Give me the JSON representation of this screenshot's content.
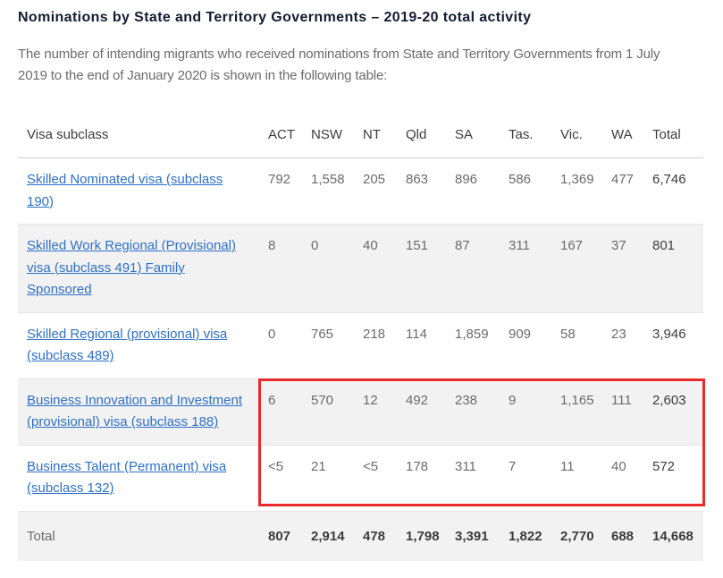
{
  "page": {
    "title": "Nominations by State and Territory Governments – 2019-20 total activity",
    "intro": "The number of intending migrants who received nominations from State and Territory Governments from 1 July 2019 to the end of January 2020 is shown in the following table:"
  },
  "table": {
    "columns": [
      "Visa subclass",
      "ACT",
      "NSW",
      "NT",
      "Qld",
      "SA",
      "Tas.",
      "Vic.",
      "WA",
      "Total"
    ],
    "rows": [
      {
        "label": "Skilled Nominated visa (subclass 190)",
        "is_link": true,
        "shaded": false,
        "values": [
          "792",
          "1,558",
          "205",
          "863",
          "896",
          "586",
          "1,369",
          "477"
        ],
        "total": "6,746"
      },
      {
        "label": "Skilled Work Regional (Provisional) visa (subclass 491) Family Sponsored",
        "is_link": true,
        "shaded": true,
        "values": [
          "8",
          "0",
          "40",
          "151",
          "87",
          "311",
          "167",
          "37"
        ],
        "total": "801"
      },
      {
        "label": "Skilled Regional (provisional) visa (subclass 489)",
        "is_link": true,
        "shaded": false,
        "values": [
          "0",
          "765",
          "218",
          "114",
          "1,859",
          "909",
          "58",
          "23"
        ],
        "total": "3,946"
      },
      {
        "label": "Business Innovation and Investment (provisional) visa (subclass 188)",
        "is_link": true,
        "shaded": true,
        "values": [
          "6",
          "570",
          "12",
          "492",
          "238",
          "9",
          "1,165",
          "111"
        ],
        "total": "2,603"
      },
      {
        "label": "Business Talent (Permanent) visa (subclass 132)",
        "is_link": true,
        "shaded": false,
        "values": [
          "<5",
          "21",
          "<5",
          "178",
          "311",
          "7",
          "11",
          "40"
        ],
        "total": "572"
      }
    ],
    "total_row": {
      "label": "Total",
      "values": [
        "807",
        "2,914",
        "478",
        "1,798",
        "3,391",
        "1,822",
        "2,770",
        "688"
      ],
      "total": "14,668"
    }
  },
  "annotation": {
    "highlight_color": "#e92a2d",
    "highlighted_rows": [
      "Business Innovation and Investment (provisional) visa (subclass 188)",
      "Business Talent (Permanent) visa (subclass 132)"
    ]
  }
}
